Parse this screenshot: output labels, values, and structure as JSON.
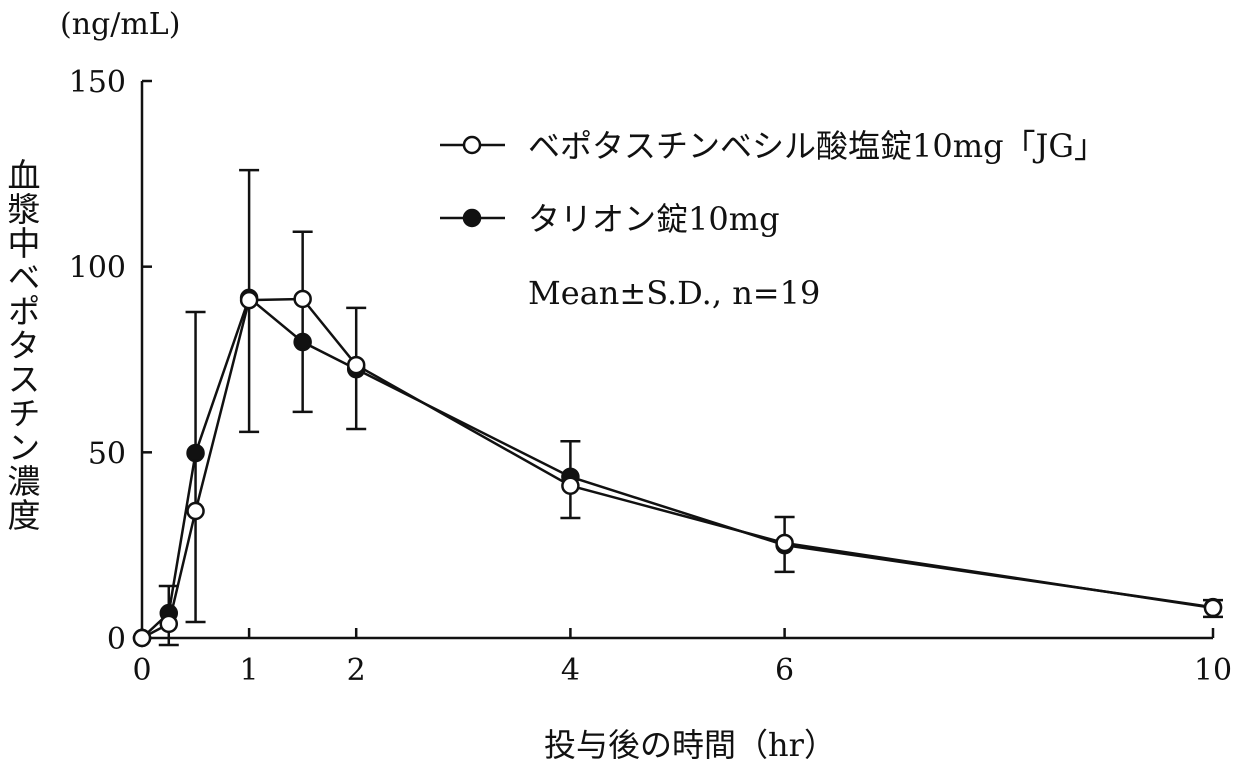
{
  "chart_data": {
    "type": "line",
    "title": "",
    "xlabel": "投与後の時間（hr）",
    "ylabel": "血漿中ベポタスチン濃度",
    "yunit": "(ng/mL)",
    "xlim": [
      0,
      10
    ],
    "ylim": [
      0,
      150
    ],
    "xticks": [
      0,
      1,
      2,
      4,
      6,
      10
    ],
    "yticks": [
      0,
      50,
      100,
      150
    ],
    "grid": false,
    "legend_position": "top-right",
    "annotation": "Mean±S.D., n=19",
    "x": [
      0,
      0.25,
      0.5,
      1,
      1.5,
      2,
      4,
      6,
      10
    ],
    "series": [
      {
        "name": "ベポタスチンベシル酸塩錠10mg「JG」",
        "marker": "open-circle",
        "values": [
          0,
          3.8,
          34.2,
          91.0,
          91.3,
          73.5,
          41.0,
          25.6,
          8.1
        ]
      },
      {
        "name": "タリオン錠10mg",
        "marker": "filled-circle",
        "values": [
          0,
          6.7,
          49.8,
          91.6,
          79.7,
          72.4,
          43.4,
          25.0,
          8.3
        ]
      }
    ],
    "error_bars": [
      {
        "x": 0.25,
        "upper": 14.0,
        "lower": -1.9
      },
      {
        "x": 0.5,
        "upper": 87.8,
        "lower": 4.3
      },
      {
        "x": 1,
        "upper": 126.0,
        "lower": 55.5
      },
      {
        "x": 1.5,
        "upper": 109.4,
        "lower": 60.9
      },
      {
        "x": 2,
        "upper": 88.9,
        "lower": 56.3
      },
      {
        "x": 4,
        "upper": 53.0,
        "lower": 32.3
      },
      {
        "x": 6,
        "upper": 32.6,
        "lower": 17.8
      },
      {
        "x": 10,
        "upper": 10.2,
        "lower": 5.7
      }
    ]
  }
}
